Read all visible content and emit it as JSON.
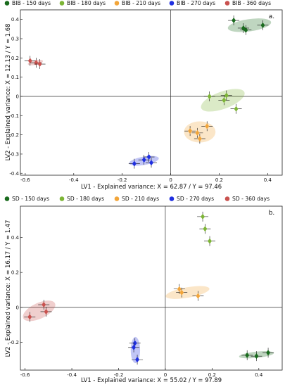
{
  "chart_data": [
    {
      "type": "scatter",
      "panel_label": "a.",
      "xlabel": "LV1 - Explained variance: X = 62.87 / Y = 97.46",
      "ylabel": "LV2 - Explained variance: X = 12.13 / Y = 1.68",
      "xlim": [
        -0.62,
        0.46
      ],
      "ylim": [
        -0.41,
        0.45
      ],
      "xticks": [
        -0.6,
        -0.4,
        -0.2,
        0,
        0.2,
        0.4
      ],
      "yticks": [
        -0.4,
        -0.3,
        -0.2,
        -0.1,
        0,
        0.1,
        0.2,
        0.3,
        0.4
      ],
      "xtick_labels": [
        "-0.6",
        "-0.4",
        "-0.2",
        "0",
        "0.2",
        "0.4"
      ],
      "ytick_labels": [
        "-0.4",
        "-0.3",
        "-0.2",
        "-0.1",
        "0",
        "0.1",
        "0.2",
        "0.3",
        "0.4"
      ],
      "grid": false,
      "legend": "top",
      "series": [
        {
          "name": "BIB - 150 days",
          "color": "#1a6b1e",
          "points": [
            {
              "x": 0.26,
              "y": 0.395
            },
            {
              "x": 0.31,
              "y": 0.345
            },
            {
              "x": 0.38,
              "y": 0.37
            },
            {
              "x": 0.3,
              "y": 0.355
            }
          ],
          "ellipse": {
            "cx": 0.325,
            "cy": 0.37,
            "rx": 0.09,
            "ry": 0.032,
            "angle": -8
          }
        },
        {
          "name": "BIB - 180 days",
          "color": "#7db536",
          "points": [
            {
              "x": 0.16,
              "y": 0.0
            },
            {
              "x": 0.23,
              "y": 0.005
            },
            {
              "x": 0.27,
              "y": -0.065
            },
            {
              "x": 0.22,
              "y": -0.02
            }
          ],
          "ellipse": {
            "cx": 0.215,
            "cy": -0.02,
            "rx": 0.095,
            "ry": 0.045,
            "angle": -20
          }
        },
        {
          "name": "BIB - 210 days",
          "color": "#f2a53a",
          "points": [
            {
              "x": 0.08,
              "y": -0.18
            },
            {
              "x": 0.15,
              "y": -0.155
            },
            {
              "x": 0.12,
              "y": -0.22
            },
            {
              "x": 0.11,
              "y": -0.19
            }
          ],
          "ellipse": {
            "cx": 0.12,
            "cy": -0.185,
            "rx": 0.065,
            "ry": 0.055,
            "angle": 0
          }
        },
        {
          "name": "BIB - 270 days",
          "color": "#1f2fe0",
          "points": [
            {
              "x": -0.15,
              "y": -0.35
            },
            {
              "x": -0.09,
              "y": -0.315
            },
            {
              "x": -0.08,
              "y": -0.345
            },
            {
              "x": -0.11,
              "y": -0.33
            }
          ],
          "ellipse": {
            "cx": -0.11,
            "cy": -0.335,
            "rx": 0.062,
            "ry": 0.022,
            "angle": -10
          }
        },
        {
          "name": "BIB - 360 days",
          "color": "#c9524f",
          "points": [
            {
              "x": -0.58,
              "y": 0.185
            },
            {
              "x": -0.555,
              "y": 0.175
            },
            {
              "x": -0.54,
              "y": 0.168
            }
          ],
          "ellipse": {
            "cx": -0.558,
            "cy": 0.176,
            "rx": 0.032,
            "ry": 0.012,
            "angle": -12
          }
        }
      ]
    },
    {
      "type": "scatter",
      "panel_label": "b.",
      "xlabel": "LV1 - Explained variance: X = 55.02 / Y = 97.89",
      "ylabel": "LV2 - Explained variance: X = 16.17 / Y = 1.47",
      "xlim": [
        -0.62,
        0.5
      ],
      "ylim": [
        -0.36,
        0.58
      ],
      "xticks": [
        -0.6,
        -0.4,
        -0.2,
        0,
        0.2,
        0.4
      ],
      "yticks": [
        -0.2,
        0,
        0.2,
        0.4
      ],
      "xtick_labels": [
        "-0.6",
        "-0.4",
        "-0.2",
        "0",
        "0.2",
        "0.4"
      ],
      "ytick_labels": [
        "-0.2",
        "0",
        "0.2",
        "0.4"
      ],
      "grid": false,
      "legend": "top",
      "series": [
        {
          "name": "SD - 150 days",
          "color": "#1a6b1e",
          "points": [
            {
              "x": 0.35,
              "y": -0.275
            },
            {
              "x": 0.39,
              "y": -0.28
            },
            {
              "x": 0.44,
              "y": -0.26
            }
          ],
          "ellipse": {
            "cx": 0.39,
            "cy": -0.272,
            "rx": 0.075,
            "ry": 0.018,
            "angle": -6
          }
        },
        {
          "name": "SD - 180 days",
          "color": "#7db536",
          "points": [
            {
              "x": 0.16,
              "y": 0.52
            },
            {
              "x": 0.17,
              "y": 0.45
            },
            {
              "x": 0.19,
              "y": 0.38
            }
          ],
          "ellipse": null
        },
        {
          "name": "SD - 210 days",
          "color": "#f2a53a",
          "points": [
            {
              "x": 0.06,
              "y": 0.105
            },
            {
              "x": 0.07,
              "y": 0.085
            },
            {
              "x": 0.14,
              "y": 0.065
            }
          ],
          "ellipse": {
            "cx": 0.095,
            "cy": 0.085,
            "rx": 0.095,
            "ry": 0.03,
            "angle": -10
          }
        },
        {
          "name": "SD - 270 days",
          "color": "#1f2fe0",
          "points": [
            {
              "x": -0.13,
              "y": -0.205
            },
            {
              "x": -0.135,
              "y": -0.23
            },
            {
              "x": -0.12,
              "y": -0.3
            }
          ],
          "ellipse": {
            "cx": -0.128,
            "cy": -0.245,
            "rx": 0.02,
            "ry": 0.075,
            "angle": 0
          }
        },
        {
          "name": "SD - 360 days",
          "color": "#c9524f",
          "points": [
            {
              "x": -0.58,
              "y": -0.055
            },
            {
              "x": -0.52,
              "y": 0.015
            },
            {
              "x": -0.51,
              "y": -0.025
            }
          ],
          "ellipse": {
            "cx": -0.54,
            "cy": -0.02,
            "rx": 0.075,
            "ry": 0.045,
            "angle": -25
          }
        }
      ]
    }
  ]
}
